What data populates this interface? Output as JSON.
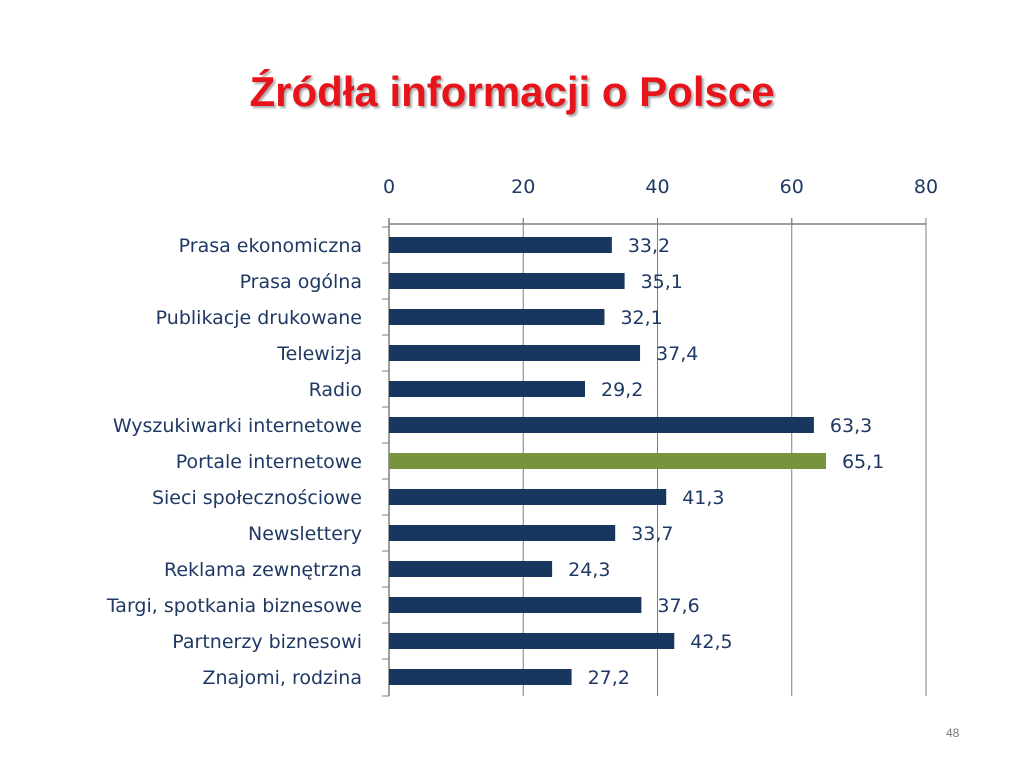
{
  "slide": {
    "title": "Źródła informacji o Polsce",
    "page_number": "48"
  },
  "chart_data": {
    "type": "bar",
    "orientation": "horizontal",
    "x_axis_position": "top",
    "xlim": [
      0,
      80
    ],
    "x_ticks": [
      0,
      20,
      40,
      60,
      80
    ],
    "grid": true,
    "categories": [
      "Prasa ekonomiczna",
      "Prasa ogólna",
      "Publikacje drukowane",
      "Telewizja",
      "Radio",
      "Wyszukiwarki internetowe",
      "Portale internetowe",
      "Sieci społecznościowe",
      "Newslettery",
      "Reklama zewnętrzna",
      "Targi, spotkania biznesowe",
      "Partnerzy biznesowi",
      "Znajomi, rodzina"
    ],
    "values": [
      33.2,
      35.1,
      32.1,
      37.4,
      29.2,
      63.3,
      65.1,
      41.3,
      33.7,
      24.3,
      37.6,
      42.5,
      27.2
    ],
    "value_labels": [
      "33,2",
      "35,1",
      "32,1",
      "37,4",
      "29,2",
      "63,3",
      "65,1",
      "41,3",
      "33,7",
      "24,3",
      "37,6",
      "42,5",
      "27,2"
    ],
    "bar_color": "#17375e",
    "highlight_color": "#77933c",
    "highlight_index": 6,
    "axis_color": "#7f7f7f",
    "text_color": "#1f3864"
  }
}
